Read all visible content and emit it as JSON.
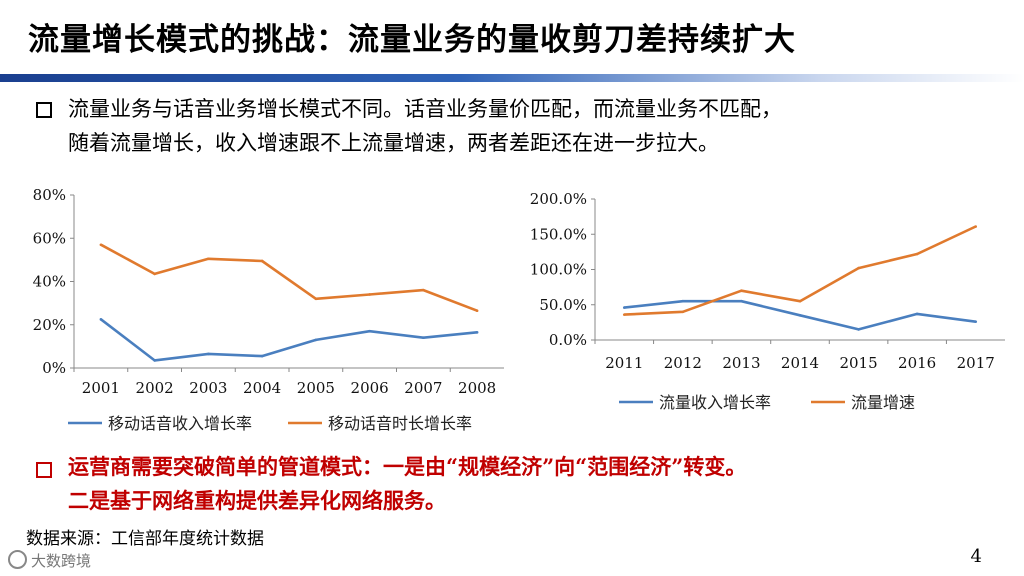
{
  "title": "流量增长模式的挑战：流量业务的量收剪刀差持续扩大",
  "intro": {
    "line1": "流量业务与话音业务增长模式不同。话音业务量价匹配，而流量业务不匹配，",
    "line2": "随着流量增长，收入增速跟不上流量增速，两者差距还在进一步拉大。"
  },
  "conclusion": {
    "line1": "运营商需要突破简单的管道模式：一是由“规模经济”向“范围经济”转变。",
    "line2": "二是基于网络重构提供差异化网络服务。"
  },
  "source": "数据来源：工信部年度统计数据",
  "page_number": "4",
  "logo_text": "大数跨境",
  "colors": {
    "blue": "#4a7fbf",
    "orange": "#e07a2e",
    "red": "#c00000"
  },
  "chart_data": [
    {
      "type": "line",
      "categories": [
        "2001",
        "2002",
        "2003",
        "2004",
        "2005",
        "2006",
        "2007",
        "2008"
      ],
      "series": [
        {
          "name": "移动话音收入增长率",
          "color": "#4a7fbf",
          "values": [
            22.5,
            3.5,
            6.5,
            5.5,
            13,
            17,
            14,
            16.5
          ]
        },
        {
          "name": "移动话音时长增长率",
          "color": "#e07a2e",
          "values": [
            57,
            43.5,
            50.5,
            49.5,
            32,
            34,
            36,
            26.5
          ]
        }
      ],
      "ylim": [
        0,
        80
      ],
      "yticks": [
        "0%",
        "20%",
        "40%",
        "60%",
        "80%"
      ],
      "legend": "bottom",
      "grid": false
    },
    {
      "type": "line",
      "categories": [
        "2011",
        "2012",
        "2013",
        "2014",
        "2015",
        "2016",
        "2017"
      ],
      "series": [
        {
          "name": "流量收入增长率",
          "color": "#4a7fbf",
          "values": [
            46,
            55,
            55,
            35,
            15,
            37,
            26
          ]
        },
        {
          "name": "流量增速",
          "color": "#e07a2e",
          "values": [
            36,
            40,
            70,
            55,
            102,
            122,
            161
          ]
        }
      ],
      "ylim": [
        0,
        200
      ],
      "yticks": [
        "0.0%",
        "50.0%",
        "100.0%",
        "150.0%",
        "200.0%"
      ],
      "legend": "bottom",
      "grid": false
    }
  ]
}
